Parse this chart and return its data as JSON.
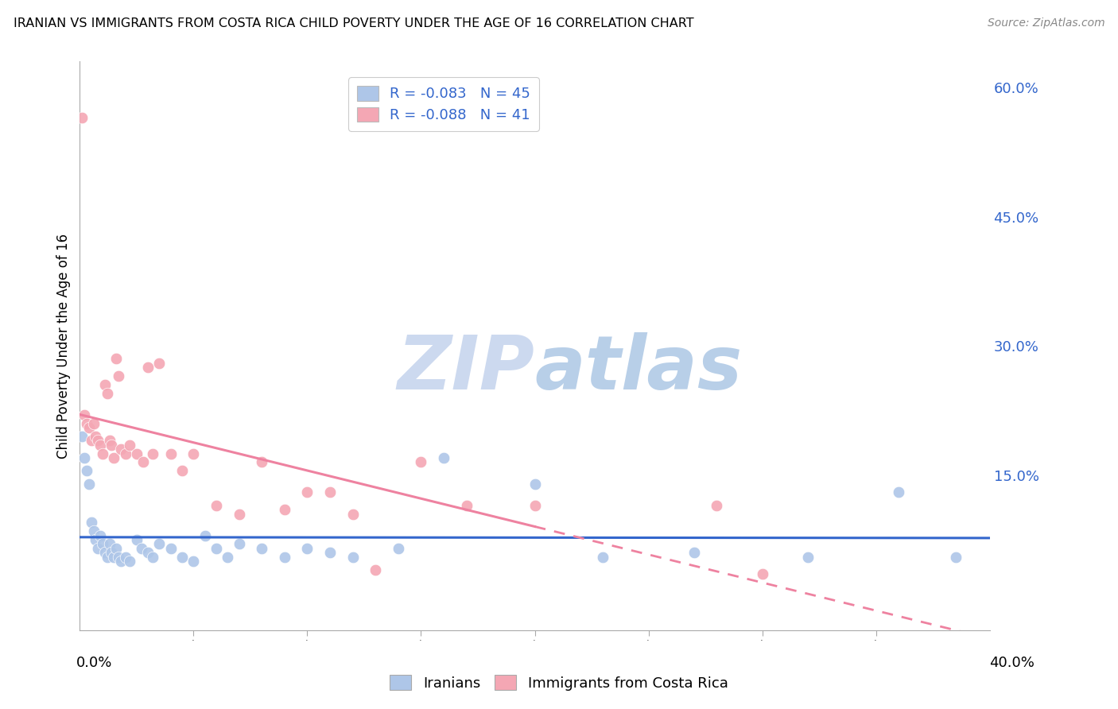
{
  "title": "IRANIAN VS IMMIGRANTS FROM COSTA RICA CHILD POVERTY UNDER THE AGE OF 16 CORRELATION CHART",
  "source": "Source: ZipAtlas.com",
  "ylabel": "Child Poverty Under the Age of 16",
  "right_yticks": [
    0.0,
    0.15,
    0.3,
    0.45,
    0.6
  ],
  "right_yticklabels": [
    "",
    "15.0%",
    "30.0%",
    "45.0%",
    "60.0%"
  ],
  "xmin": 0.0,
  "xmax": 0.4,
  "ymin": -0.03,
  "ymax": 0.63,
  "iranians_R": -0.083,
  "iranians_N": 45,
  "costa_rica_R": -0.088,
  "costa_rica_N": 41,
  "iranians_color": "#aec6e8",
  "costa_rica_color": "#f4a7b4",
  "trendline_iranian_color": "#3366cc",
  "trendline_costa_rica_color": "#ee82a0",
  "watermark_zip_color": "#ccd9ef",
  "watermark_atlas_color": "#b8cfe8",
  "background_color": "#ffffff",
  "grid_color": "#e0e0e0",
  "legend_text_color": "#3366cc",
  "iranians_x": [
    0.001,
    0.002,
    0.003,
    0.004,
    0.005,
    0.006,
    0.007,
    0.008,
    0.009,
    0.01,
    0.011,
    0.012,
    0.013,
    0.014,
    0.015,
    0.016,
    0.017,
    0.018,
    0.02,
    0.022,
    0.025,
    0.027,
    0.03,
    0.032,
    0.035,
    0.04,
    0.045,
    0.05,
    0.055,
    0.06,
    0.065,
    0.07,
    0.08,
    0.09,
    0.1,
    0.11,
    0.12,
    0.14,
    0.16,
    0.2,
    0.23,
    0.27,
    0.32,
    0.36,
    0.385
  ],
  "iranians_y": [
    0.195,
    0.17,
    0.155,
    0.14,
    0.095,
    0.085,
    0.075,
    0.065,
    0.08,
    0.07,
    0.06,
    0.055,
    0.07,
    0.06,
    0.055,
    0.065,
    0.055,
    0.05,
    0.055,
    0.05,
    0.075,
    0.065,
    0.06,
    0.055,
    0.07,
    0.065,
    0.055,
    0.05,
    0.08,
    0.065,
    0.055,
    0.07,
    0.065,
    0.055,
    0.065,
    0.06,
    0.055,
    0.065,
    0.17,
    0.14,
    0.055,
    0.06,
    0.055,
    0.13,
    0.055
  ],
  "costa_rica_x": [
    0.001,
    0.002,
    0.003,
    0.004,
    0.005,
    0.006,
    0.007,
    0.008,
    0.009,
    0.01,
    0.011,
    0.012,
    0.013,
    0.014,
    0.015,
    0.016,
    0.017,
    0.018,
    0.02,
    0.022,
    0.025,
    0.028,
    0.03,
    0.032,
    0.035,
    0.04,
    0.045,
    0.05,
    0.06,
    0.07,
    0.08,
    0.09,
    0.1,
    0.11,
    0.12,
    0.13,
    0.15,
    0.17,
    0.2,
    0.28,
    0.3
  ],
  "costa_rica_y": [
    0.565,
    0.22,
    0.21,
    0.205,
    0.19,
    0.21,
    0.195,
    0.19,
    0.185,
    0.175,
    0.255,
    0.245,
    0.19,
    0.185,
    0.17,
    0.285,
    0.265,
    0.18,
    0.175,
    0.185,
    0.175,
    0.165,
    0.275,
    0.175,
    0.28,
    0.175,
    0.155,
    0.175,
    0.115,
    0.105,
    0.165,
    0.11,
    0.13,
    0.13,
    0.105,
    0.04,
    0.165,
    0.115,
    0.115,
    0.115,
    0.035
  ]
}
